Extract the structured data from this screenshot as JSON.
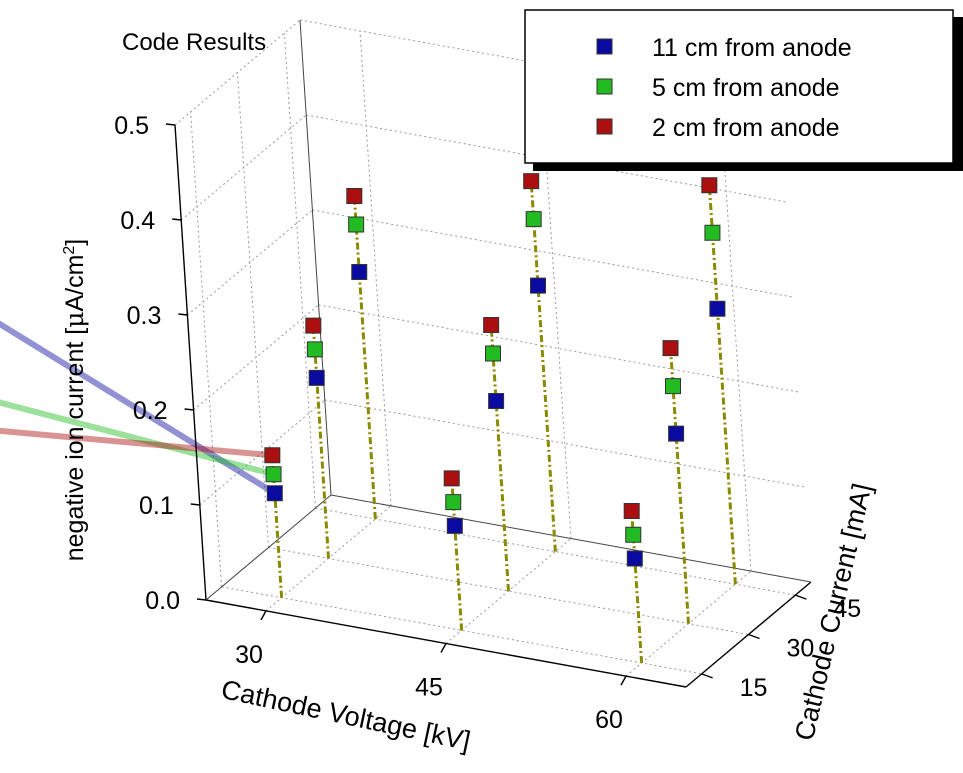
{
  "chart_data": {
    "type": "scatter",
    "title": "Code Results",
    "xlabel": "Cathode Voltage [kV]",
    "ylabel": "Cathode Current [mA]",
    "zlabel_parts": {
      "pre": "negative ion current [",
      "mu": "μ",
      "post": "A/cm",
      "sup": "2",
      "end": "]"
    },
    "x_ticks": [
      "30",
      "45",
      "60"
    ],
    "y_ticks": [
      "15",
      "30",
      "45"
    ],
    "z_ticks": [
      "0.0",
      "0.1",
      "0.2",
      "0.3",
      "0.4",
      "0.5"
    ],
    "xlim": [
      25,
      65
    ],
    "ylim": [
      10,
      50
    ],
    "zlim": [
      0,
      0.5
    ],
    "legend_position": "top-right",
    "colors": {
      "blue": "#0a0aa0",
      "green": "#22bb22",
      "red": "#aa1010",
      "stem": "#8a8a00"
    },
    "series": [
      {
        "name": "11 cm from anode",
        "color": "#0a0aa0",
        "points": [
          {
            "x": 30,
            "y": 15,
            "z": 0.11
          },
          {
            "x": 45,
            "y": 15,
            "z": 0.11
          },
          {
            "x": 60,
            "y": 15,
            "z": 0.11
          },
          {
            "x": 30,
            "y": 30,
            "z": 0.19
          },
          {
            "x": 45,
            "y": 30,
            "z": 0.2
          },
          {
            "x": 60,
            "y": 30,
            "z": 0.2
          },
          {
            "x": 30,
            "y": 45,
            "z": 0.26
          },
          {
            "x": 45,
            "y": 45,
            "z": 0.28
          },
          {
            "x": 60,
            "y": 45,
            "z": 0.29
          }
        ]
      },
      {
        "name": "5 cm from anode",
        "color": "#22bb22",
        "points": [
          {
            "x": 30,
            "y": 15,
            "z": 0.13
          },
          {
            "x": 45,
            "y": 15,
            "z": 0.135
          },
          {
            "x": 60,
            "y": 15,
            "z": 0.135
          },
          {
            "x": 30,
            "y": 30,
            "z": 0.22
          },
          {
            "x": 45,
            "y": 30,
            "z": 0.25
          },
          {
            "x": 60,
            "y": 30,
            "z": 0.25
          },
          {
            "x": 30,
            "y": 45,
            "z": 0.31
          },
          {
            "x": 45,
            "y": 45,
            "z": 0.35
          },
          {
            "x": 60,
            "y": 45,
            "z": 0.37
          }
        ]
      },
      {
        "name": "2 cm from anode",
        "color": "#aa1010",
        "points": [
          {
            "x": 30,
            "y": 15,
            "z": 0.15
          },
          {
            "x": 45,
            "y": 15,
            "z": 0.16
          },
          {
            "x": 60,
            "y": 15,
            "z": 0.16
          },
          {
            "x": 30,
            "y": 30,
            "z": 0.245
          },
          {
            "x": 45,
            "y": 30,
            "z": 0.28
          },
          {
            "x": 60,
            "y": 30,
            "z": 0.29
          },
          {
            "x": 30,
            "y": 45,
            "z": 0.34
          },
          {
            "x": 45,
            "y": 45,
            "z": 0.39
          },
          {
            "x": 60,
            "y": 45,
            "z": 0.42
          }
        ]
      }
    ]
  }
}
